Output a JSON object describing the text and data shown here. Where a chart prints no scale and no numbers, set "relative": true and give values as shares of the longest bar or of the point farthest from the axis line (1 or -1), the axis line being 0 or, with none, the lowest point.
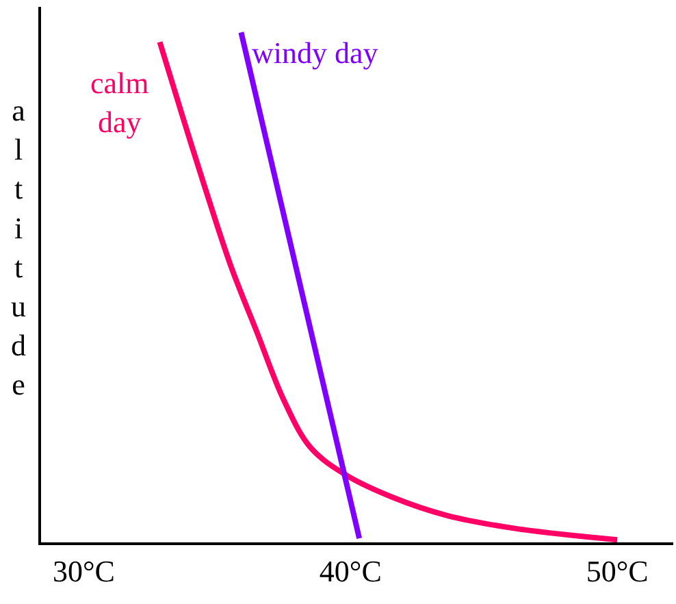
{
  "chart_data": {
    "type": "line",
    "relative": true,
    "ylabel": "altitude",
    "xlim": [
      28.4,
      52.1
    ],
    "xticks": [
      {
        "value": 30,
        "label": "30°C"
      },
      {
        "value": 40,
        "label": "40°C"
      },
      {
        "value": 50,
        "label": "50°C"
      }
    ],
    "legend": false,
    "marker": "none",
    "line_style": "solid",
    "series": [
      {
        "name": "calm day",
        "color": "#ff0066",
        "x": [
          32.85,
          33.7,
          34.5,
          35.5,
          36.5,
          37.5,
          38.5,
          39.8,
          41.6,
          43.6,
          46.2,
          50
        ],
        "values": [
          0.981,
          0.836,
          0.703,
          0.544,
          0.411,
          0.279,
          0.186,
          0.133,
          0.088,
          0.053,
          0.027,
          0.005
        ]
      },
      {
        "name": "windy day",
        "color": "#8000ff",
        "x": [
          35.9,
          40.33
        ],
        "values": [
          1.0,
          0.008
        ]
      }
    ]
  }
}
